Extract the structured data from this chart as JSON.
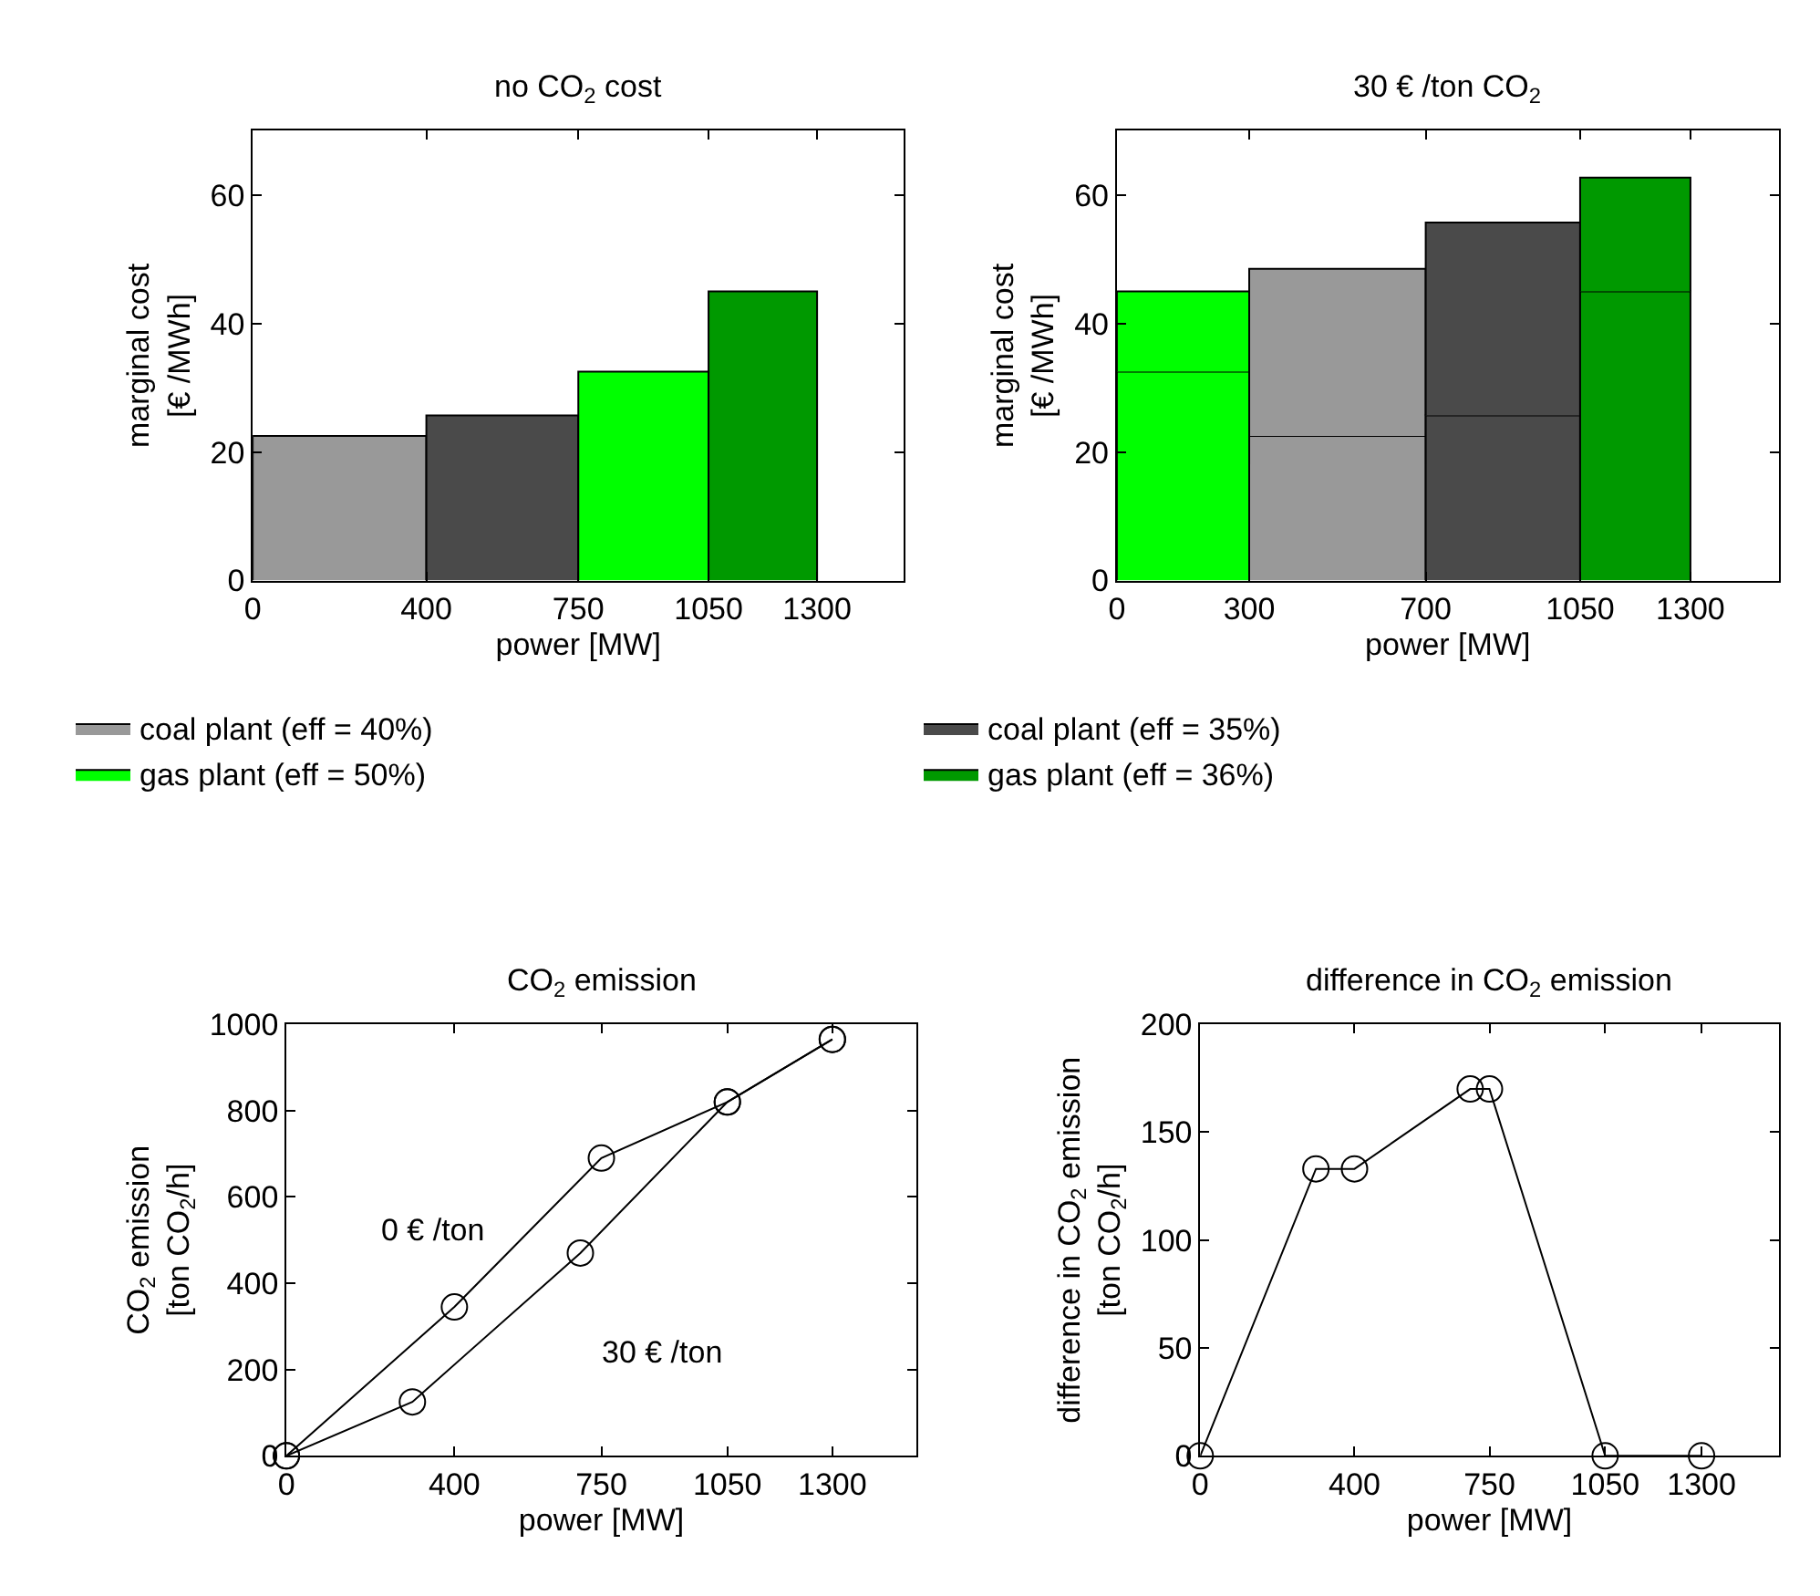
{
  "chart_data": [
    {
      "type": "area",
      "title": "no CO$_{2}$ cost",
      "xlabel": "power [MW]",
      "ylabel": "marginal cost\n[€ /MWh]",
      "xlim": [
        0,
        1500
      ],
      "xticks": [
        0,
        400,
        750,
        1050,
        1300
      ],
      "ylim": [
        0,
        70
      ],
      "yticks": [
        0,
        20,
        40,
        60
      ],
      "legend": "bottom",
      "series": [
        {
          "name": "coal plant (eff = 40%)",
          "color": "#999999",
          "x": [
            0,
            0,
            400,
            400
          ],
          "values": [
            0,
            22.5,
            22.5,
            0
          ]
        },
        {
          "name": "coal plant (eff = 35%)",
          "color": "#4a4a4a",
          "x": [
            400,
            400,
            750,
            750
          ],
          "values": [
            0,
            25.7,
            25.7,
            0
          ]
        },
        {
          "name": "gas plant (eff = 50%)",
          "color": "#00ff00",
          "x": [
            750,
            750,
            1050,
            1050
          ],
          "values": [
            0,
            32.5,
            32.5,
            0
          ]
        },
        {
          "name": "gas plant (eff = 36%)",
          "color": "#009900",
          "x": [
            1050,
            1050,
            1300,
            1300
          ],
          "values": [
            0,
            45,
            45,
            0
          ]
        }
      ]
    },
    {
      "type": "area",
      "title": "30 € /ton CO$_{2}$",
      "xlabel": "power [MW]",
      "ylabel": "marginal cost\n[€ /MWh]",
      "xlim": [
        0,
        1500
      ],
      "xticks": [
        0,
        300,
        700,
        1050,
        1300
      ],
      "ylim": [
        0,
        70
      ],
      "yticks": [
        0,
        20,
        40,
        60
      ],
      "series": [
        {
          "color": "#00ff00",
          "x": [
            0,
            0,
            300,
            300
          ],
          "values": [
            0,
            32.5,
            32.5,
            0
          ]
        },
        {
          "color": "#00ff00",
          "x": [
            0,
            0,
            300,
            300
          ],
          "values": [
            32.5,
            45,
            45,
            32.5
          ]
        },
        {
          "color": "#999999",
          "x": [
            300,
            300,
            700,
            700
          ],
          "values": [
            0,
            22.5,
            22.5,
            0
          ]
        },
        {
          "color": "#999999",
          "x": [
            300,
            300,
            700,
            700
          ],
          "values": [
            22.5,
            48.5,
            48.5,
            22.5
          ]
        },
        {
          "color": "#4a4a4a",
          "x": [
            700,
            700,
            1050,
            1050
          ],
          "values": [
            0,
            25.7,
            25.7,
            0
          ]
        },
        {
          "color": "#4a4a4a",
          "x": [
            700,
            700,
            1050,
            1050
          ],
          "values": [
            25.7,
            55.7,
            55.7,
            25.7
          ]
        },
        {
          "color": "#009900",
          "x": [
            1050,
            1050,
            1300,
            1300
          ],
          "values": [
            0,
            45,
            45,
            0
          ]
        },
        {
          "color": "#009900",
          "x": [
            1050,
            1050,
            1300,
            1300
          ],
          "values": [
            45,
            62.7,
            62.7,
            45
          ]
        }
      ]
    },
    {
      "type": "line",
      "title": "CO$_{2}$ emission",
      "xlabel": "power [MW]",
      "ylabel": "CO$_{2}$ emission\n[ton CO$_{2}$/h]",
      "xlim": [
        0,
        1500
      ],
      "xticks": [
        0,
        400,
        750,
        1050,
        1300
      ],
      "ylim": [
        0,
        1000
      ],
      "yticks": [
        0,
        200,
        400,
        600,
        800,
        1000
      ],
      "marker": "circle",
      "line_style": "solid",
      "series": [
        {
          "name": "0 € /ton",
          "color": "#000000",
          "x": [
            0,
            400,
            750,
            1050,
            1300
          ],
          "values": [
            0,
            345,
            690,
            820,
            965
          ]
        },
        {
          "name": "30 € /ton",
          "color": "#000000",
          "x": [
            0,
            300,
            700,
            1050,
            1300
          ],
          "values": [
            0,
            125,
            470,
            820,
            965
          ]
        }
      ]
    },
    {
      "type": "line",
      "title": "difference in CO$_{2}$ emission",
      "xlabel": "power [MW]",
      "ylabel": "difference in CO$_{2}$ emission\n[ton CO$_{2}$/h]",
      "xlim": [
        0,
        1500
      ],
      "xticks": [
        0,
        400,
        750,
        1050,
        1300
      ],
      "ylim": [
        0,
        200
      ],
      "yticks": [
        0,
        50,
        100,
        150,
        200
      ],
      "marker": "circle",
      "line_style": "solid",
      "series": [
        {
          "color": "#000000",
          "x": [
            0,
            300,
            400,
            700,
            750,
            1050,
            1300
          ],
          "values": [
            0,
            133,
            133,
            170,
            170,
            0,
            0
          ]
        }
      ]
    }
  ]
}
